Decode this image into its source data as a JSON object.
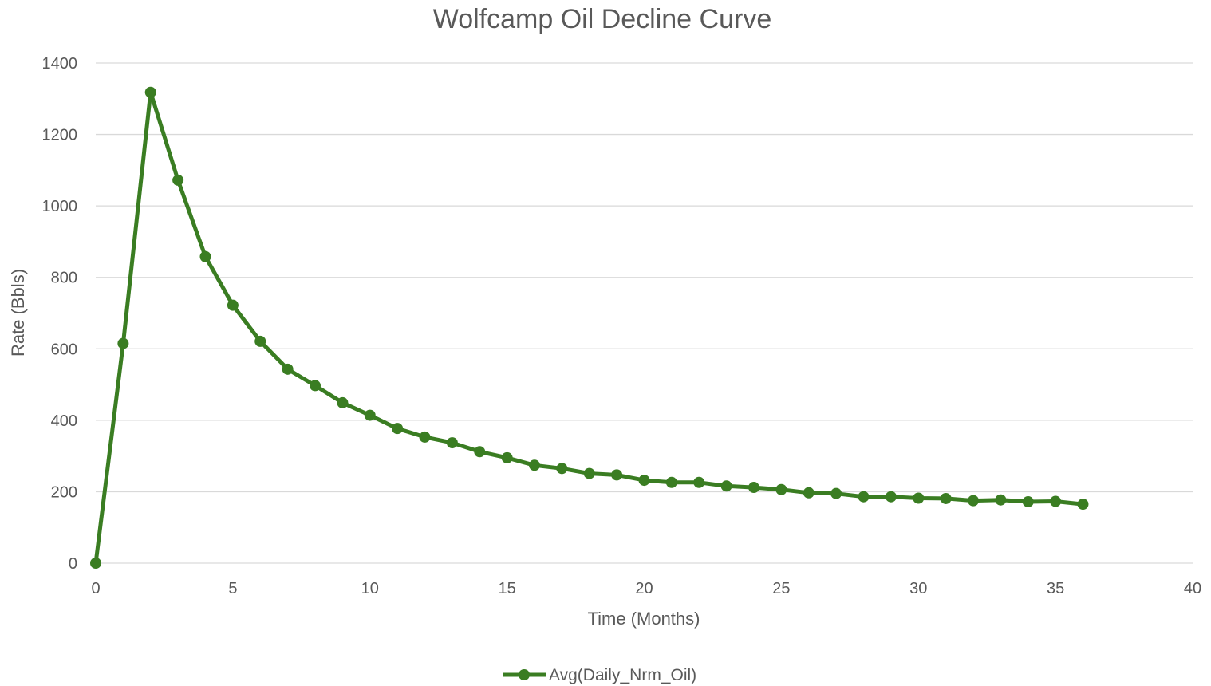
{
  "chart_data": {
    "type": "line",
    "title": "Wolfcamp Oil Decline Curve",
    "xlabel": "Time (Months)",
    "ylabel": "Rate (Bbls)",
    "xlim": [
      0,
      40
    ],
    "ylim": [
      0,
      1400
    ],
    "x_ticks": [
      0,
      5,
      10,
      15,
      20,
      25,
      30,
      35,
      40
    ],
    "y_ticks": [
      0,
      200,
      400,
      600,
      800,
      1000,
      1200,
      1400
    ],
    "grid": "horizontal",
    "legend": "bottom",
    "series": [
      {
        "name": "Avg(Daily_Nrm_Oil)",
        "color": "#3a7d22",
        "marker": "circle",
        "x": [
          0,
          1,
          2,
          3,
          4,
          5,
          6,
          7,
          8,
          9,
          10,
          11,
          12,
          13,
          14,
          15,
          16,
          17,
          18,
          19,
          20,
          21,
          22,
          23,
          24,
          25,
          26,
          27,
          28,
          29,
          30,
          31,
          32,
          33,
          34,
          35,
          36
        ],
        "y": [
          0,
          615,
          1318,
          1072,
          858,
          722,
          621,
          543,
          497,
          449,
          414,
          377,
          353,
          337,
          312,
          295,
          274,
          265,
          251,
          247,
          232,
          226,
          226,
          216,
          212,
          206,
          197,
          195,
          186,
          186,
          182,
          181,
          175,
          177,
          172,
          173,
          165
        ]
      }
    ]
  }
}
